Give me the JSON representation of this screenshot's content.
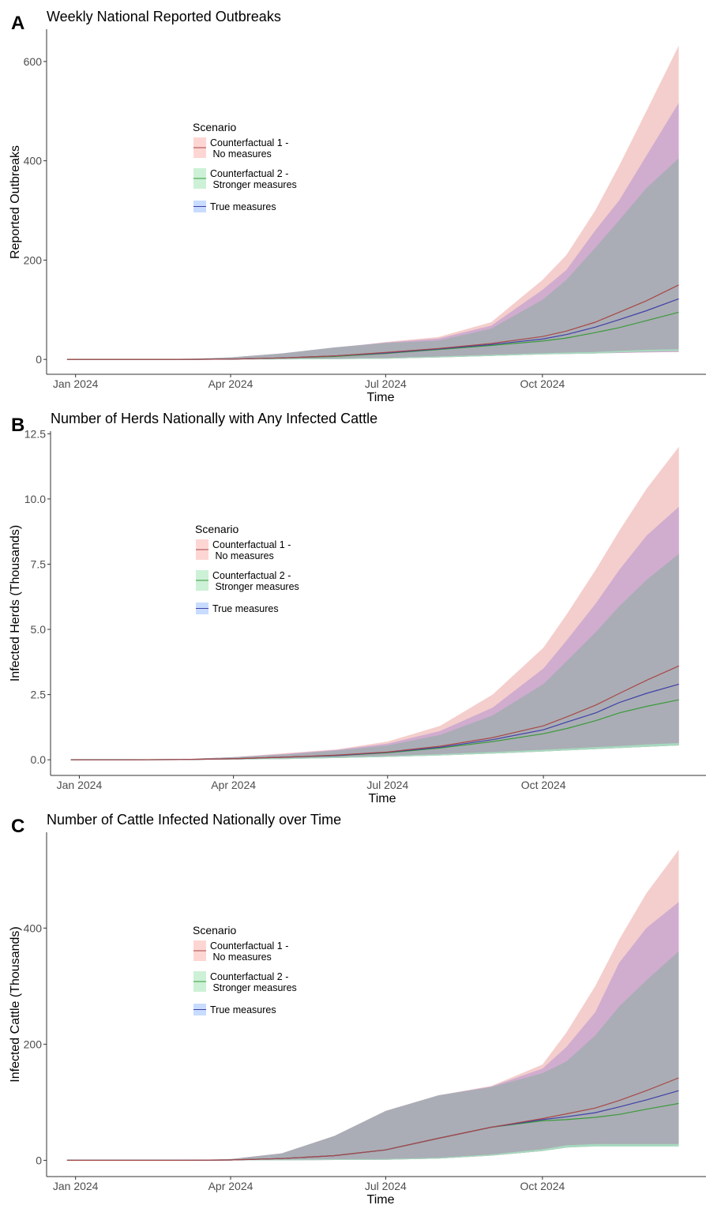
{
  "colors": {
    "cf1_line": "#a84848",
    "cf1_fill": "#f8766d",
    "cf2_line": "#3a9a3a",
    "cf2_fill": "#00ba38",
    "true_line": "#4040a8",
    "true_fill": "#619cff",
    "overlap": "#a8adb3"
  },
  "chart_data": [
    {
      "type": "area",
      "panel": "A",
      "title": "Weekly National Reported Outbreaks",
      "xlabel": "Time",
      "ylabel": "Reported Outbreaks",
      "x_ticks": [
        "Jan 2024",
        "Apr 2024",
        "Jul 2024",
        "Oct 2024"
      ],
      "x_tick_dates": [
        "2024-01-01",
        "2024-04-01",
        "2024-07-01",
        "2024-10-01"
      ],
      "xlim": [
        "2023-12-15",
        "2025-01-05"
      ],
      "ylim": [
        -30,
        665
      ],
      "y_ticks": [
        0,
        200,
        400,
        600
      ],
      "y_tick_labels": [
        "0",
        "200",
        "400",
        "600"
      ],
      "grid": false,
      "legend": {
        "title": "Scenario",
        "position": "upper-left",
        "entries": [
          {
            "key": "cf1",
            "line1": "Counterfactual 1 -",
            "line2": " No measures"
          },
          {
            "key": "cf2",
            "line1": "Counterfactual 2 -",
            "line2": " Stronger measures"
          },
          {
            "key": "true",
            "line1": "True measures",
            "line2": ""
          }
        ]
      },
      "x": [
        "2023-12-27",
        "2024-02-01",
        "2024-03-01",
        "2024-04-01",
        "2024-05-01",
        "2024-06-01",
        "2024-07-01",
        "2024-08-01",
        "2024-09-01",
        "2024-10-01",
        "2024-10-15",
        "2024-11-01",
        "2024-11-15",
        "2024-12-01",
        "2024-12-20"
      ],
      "series": [
        {
          "name": "Counterfactual 1 -\n No measures",
          "key": "cf1",
          "median": [
            0,
            0,
            0,
            0.5,
            3,
            7,
            14,
            22,
            32,
            46,
            57,
            75,
            95,
            118,
            150
          ],
          "lower": [
            0,
            0,
            0,
            0,
            0,
            0.5,
            1.5,
            4,
            7,
            10,
            11,
            12,
            13,
            14,
            15
          ],
          "upper": [
            0,
            0,
            0,
            4,
            12,
            22,
            35,
            45,
            75,
            160,
            210,
            300,
            390,
            500,
            632
          ]
        },
        {
          "name": "Counterfactual 2 -\n Stronger measures",
          "key": "cf2",
          "median": [
            0,
            0,
            0,
            0.5,
            3,
            6,
            12,
            20,
            28,
            37,
            43,
            54,
            64,
            78,
            95
          ],
          "lower": [
            0,
            0,
            0,
            0,
            0,
            0.5,
            1.5,
            4,
            7,
            10,
            11,
            12,
            14,
            16,
            17
          ],
          "upper": [
            0,
            0,
            0,
            4,
            12,
            24,
            33,
            38,
            62,
            120,
            160,
            225,
            280,
            345,
            405
          ]
        },
        {
          "name": "True measures",
          "key": "true",
          "median": [
            0,
            0,
            0,
            0.5,
            3,
            7,
            13,
            21,
            30,
            41,
            50,
            65,
            80,
            98,
            122
          ],
          "lower": [
            0,
            0,
            0,
            0,
            0,
            0.5,
            1.5,
            4,
            7,
            10,
            11,
            12,
            13,
            14,
            15
          ],
          "upper": [
            0,
            0,
            0,
            4,
            12,
            24,
            34,
            42,
            68,
            140,
            180,
            260,
            320,
            410,
            517
          ]
        }
      ]
    },
    {
      "type": "area",
      "panel": "B",
      "title": "Number of Herds Nationally with Any Infected Cattle",
      "xlabel": "Time",
      "ylabel": "Infected Herds (Thousands)",
      "x_ticks": [
        "Jan 2024",
        "Apr 2024",
        "Jul 2024",
        "Oct 2024"
      ],
      "x_tick_dates": [
        "2024-01-01",
        "2024-04-01",
        "2024-07-01",
        "2024-10-01"
      ],
      "xlim": [
        "2023-12-15",
        "2025-01-05"
      ],
      "ylim": [
        -0.6,
        12.6
      ],
      "y_ticks": [
        0,
        2.5,
        5,
        7.5,
        10,
        12.5
      ],
      "y_tick_labels": [
        "0.0",
        "2.5",
        "5.0",
        "7.5",
        "10.0",
        "12.5"
      ],
      "grid": false,
      "legend": {
        "title": "Scenario",
        "position": "upper-left",
        "entries": [
          {
            "key": "cf1",
            "line1": "Counterfactual 1 -",
            "line2": " No measures"
          },
          {
            "key": "cf2",
            "line1": "Counterfactual 2 -",
            "line2": " Stronger measures"
          },
          {
            "key": "true",
            "line1": "True measures",
            "line2": ""
          }
        ]
      },
      "x": [
        "2023-12-27",
        "2024-02-01",
        "2024-03-01",
        "2024-04-01",
        "2024-05-01",
        "2024-06-01",
        "2024-07-01",
        "2024-08-01",
        "2024-09-01",
        "2024-10-01",
        "2024-10-15",
        "2024-11-01",
        "2024-11-15",
        "2024-12-01",
        "2024-12-20"
      ],
      "series": [
        {
          "name": "Counterfactual 1 -\n No measures",
          "key": "cf1",
          "median": [
            0,
            0,
            0.01,
            0.04,
            0.1,
            0.18,
            0.3,
            0.52,
            0.85,
            1.3,
            1.65,
            2.1,
            2.55,
            3.05,
            3.6
          ],
          "lower": [
            0,
            0,
            0,
            0.01,
            0.03,
            0.07,
            0.11,
            0.17,
            0.24,
            0.32,
            0.36,
            0.41,
            0.45,
            0.5,
            0.56
          ],
          "upper": [
            0,
            0,
            0.02,
            0.1,
            0.25,
            0.4,
            0.7,
            1.3,
            2.5,
            4.3,
            5.6,
            7.3,
            8.8,
            10.4,
            12.0
          ]
        },
        {
          "name": "Counterfactual 2 -\n Stronger measures",
          "key": "cf2",
          "median": [
            0,
            0,
            0.01,
            0.04,
            0.1,
            0.16,
            0.27,
            0.45,
            0.7,
            1.0,
            1.2,
            1.5,
            1.8,
            2.05,
            2.3
          ],
          "lower": [
            0,
            0,
            0,
            0.01,
            0.03,
            0.07,
            0.11,
            0.17,
            0.24,
            0.32,
            0.36,
            0.41,
            0.45,
            0.5,
            0.55
          ],
          "upper": [
            0,
            0,
            0.02,
            0.1,
            0.2,
            0.35,
            0.55,
            0.95,
            1.7,
            2.9,
            3.8,
            4.9,
            5.9,
            6.9,
            7.9
          ]
        },
        {
          "name": "True measures",
          "key": "true",
          "median": [
            0,
            0,
            0.01,
            0.04,
            0.1,
            0.17,
            0.29,
            0.48,
            0.77,
            1.15,
            1.45,
            1.8,
            2.2,
            2.55,
            2.9
          ],
          "lower": [
            0,
            0,
            0,
            0.01,
            0.03,
            0.07,
            0.11,
            0.17,
            0.24,
            0.32,
            0.36,
            0.41,
            0.45,
            0.5,
            0.55
          ],
          "upper": [
            0,
            0,
            0.02,
            0.1,
            0.22,
            0.38,
            0.62,
            1.1,
            2.0,
            3.5,
            4.6,
            6.0,
            7.3,
            8.6,
            9.7
          ]
        }
      ]
    },
    {
      "type": "area",
      "panel": "C",
      "title": "Number of Cattle Infected Nationally over Time",
      "xlabel": "Time",
      "ylabel": "Infected Cattle (Thousands)",
      "x_ticks": [
        "Jan 2024",
        "Apr 2024",
        "Jul 2024",
        "Oct 2024"
      ],
      "x_tick_dates": [
        "2024-01-01",
        "2024-04-01",
        "2024-07-01",
        "2024-10-01"
      ],
      "xlim": [
        "2023-12-15",
        "2025-01-05"
      ],
      "ylim": [
        -28,
        565
      ],
      "y_ticks": [
        0,
        200,
        400
      ],
      "y_tick_labels": [
        "0",
        "200",
        "400"
      ],
      "grid": false,
      "legend": {
        "title": "Scenario",
        "position": "upper-left",
        "entries": [
          {
            "key": "cf1",
            "line1": "Counterfactual 1 -",
            "line2": " No measures"
          },
          {
            "key": "cf2",
            "line1": "Counterfactual 2 -",
            "line2": " Stronger measures"
          },
          {
            "key": "true",
            "line1": "True measures",
            "line2": ""
          }
        ]
      },
      "x": [
        "2023-12-27",
        "2024-02-01",
        "2024-03-01",
        "2024-04-01",
        "2024-05-01",
        "2024-06-01",
        "2024-07-01",
        "2024-08-01",
        "2024-09-01",
        "2024-10-01",
        "2024-10-15",
        "2024-11-01",
        "2024-11-15",
        "2024-12-01",
        "2024-12-20"
      ],
      "series": [
        {
          "name": "Counterfactual 1 -\n No measures",
          "key": "cf1",
          "median": [
            0,
            0,
            0,
            0.5,
            3,
            8,
            18,
            38,
            57,
            72,
            80,
            90,
            103,
            120,
            142
          ],
          "lower": [
            0,
            0,
            0,
            0,
            0,
            0.5,
            1,
            3,
            8,
            16,
            22,
            25,
            26,
            27,
            27
          ],
          "upper": [
            0,
            0,
            0,
            2,
            12,
            42,
            85,
            112,
            128,
            165,
            220,
            300,
            380,
            460,
            535
          ]
        },
        {
          "name": "Counterfactual 2 -\n Stronger measures",
          "key": "cf2",
          "median": [
            0,
            0,
            0,
            0.5,
            3,
            8,
            18,
            38,
            57,
            68,
            70,
            74,
            79,
            88,
            98
          ],
          "lower": [
            0,
            0,
            0,
            0,
            0,
            0.5,
            1,
            3,
            8,
            16,
            22,
            24,
            24,
            24,
            24
          ],
          "upper": [
            0,
            0,
            0,
            2,
            12,
            42,
            85,
            112,
            126,
            150,
            170,
            215,
            265,
            310,
            360
          ]
        },
        {
          "name": "True measures",
          "key": "true",
          "median": [
            0,
            0,
            0,
            0.5,
            3,
            8,
            18,
            38,
            57,
            70,
            75,
            82,
            92,
            104,
            120
          ],
          "lower": [
            0,
            0,
            0,
            0,
            0,
            0.5,
            1,
            3,
            8,
            16,
            22,
            25,
            26,
            26,
            26
          ],
          "upper": [
            0,
            0,
            0,
            2,
            12,
            42,
            85,
            112,
            127,
            158,
            195,
            255,
            340,
            400,
            445
          ]
        }
      ]
    }
  ]
}
